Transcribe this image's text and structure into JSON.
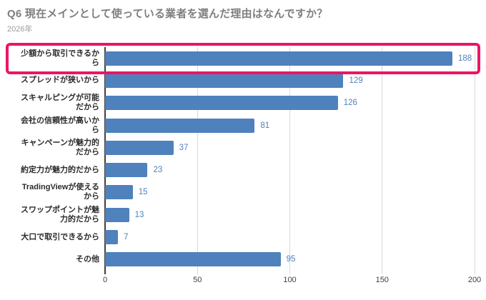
{
  "header": {
    "title": "Q6 現在メインとして使っている業者を選んだ理由はなんですか？",
    "subtitle": "2026年"
  },
  "chart_data": {
    "type": "bar",
    "orientation": "horizontal",
    "title": "Q6 現在メインとして使っている業者を選んだ理由はなんですか？",
    "subtitle": "2026年",
    "categories": [
      "少額から取引できるから",
      "スプレッドが狭いから",
      "スキャルピングが可能だから",
      "会社の信頼性が高いから",
      "キャンペーンが魅力的だから",
      "約定力が魅力的だから",
      "TradingViewが使えるから",
      "スワップポイントが魅力的だから",
      "大口で取引できるから",
      "その他"
    ],
    "values": [
      188,
      129,
      126,
      81,
      37,
      23,
      15,
      13,
      7,
      95
    ],
    "xlabel": "",
    "ylabel": "",
    "xlim": [
      0,
      200
    ],
    "x_ticks": [
      "0",
      "50",
      "100",
      "150",
      "200"
    ],
    "grid": "vertical-gridlines-on",
    "legend": "none",
    "data_labels": "outside-end",
    "colors": {
      "bar": "#4f81bd",
      "value_label": "#4f81bd",
      "gridline": "#d9d9d9",
      "axis_line": "#3f3f3f",
      "category_label": "#2b2b2b",
      "title": "#7f7f7f",
      "highlight_border": "#ec1566"
    },
    "highlight": {
      "index": 0,
      "category": "少額から取引できるから",
      "style": "pink-rounded-border"
    }
  }
}
